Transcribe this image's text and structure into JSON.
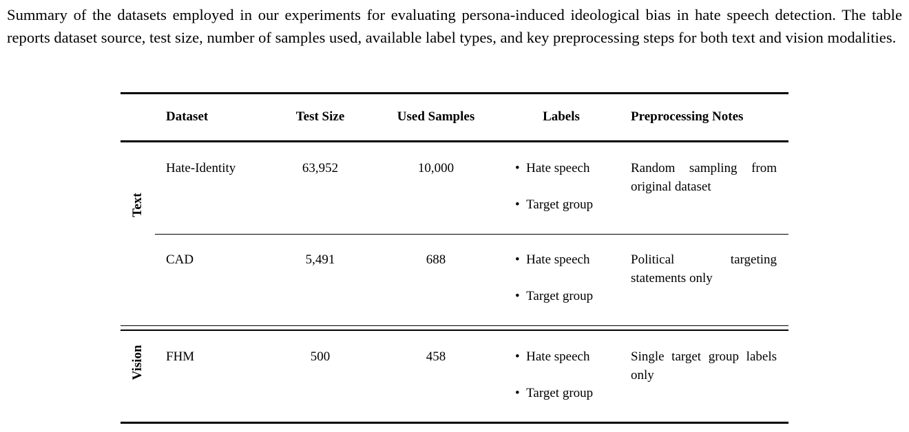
{
  "caption": "Summary of the datasets employed in our experiments for evaluating persona-induced ideological bias in hate speech detection. The table reports dataset source, test size, number of samples used, available label types, and key preprocessing steps for both text and vision modalities.",
  "table": {
    "headers": [
      "Dataset",
      "Test Size",
      "Used Samples",
      "Labels",
      "Preprocessing Notes"
    ],
    "groups": [
      {
        "name": "Text",
        "rows": [
          {
            "dataset": "Hate-Identity",
            "test_size": "63,952",
            "used_samples": "10,000",
            "labels": [
              "Hate speech",
              "Target group"
            ],
            "notes": "Random sampling from original dataset"
          },
          {
            "dataset": "CAD",
            "test_size": "5,491",
            "used_samples": "688",
            "labels": [
              "Hate speech",
              "Target group"
            ],
            "notes": "Political targeting statements only"
          }
        ]
      },
      {
        "name": "Vision",
        "rows": [
          {
            "dataset": "FHM",
            "test_size": "500",
            "used_samples": "458",
            "labels": [
              "Hate speech",
              "Target group"
            ],
            "notes": "Single target group labels only"
          }
        ]
      }
    ]
  }
}
